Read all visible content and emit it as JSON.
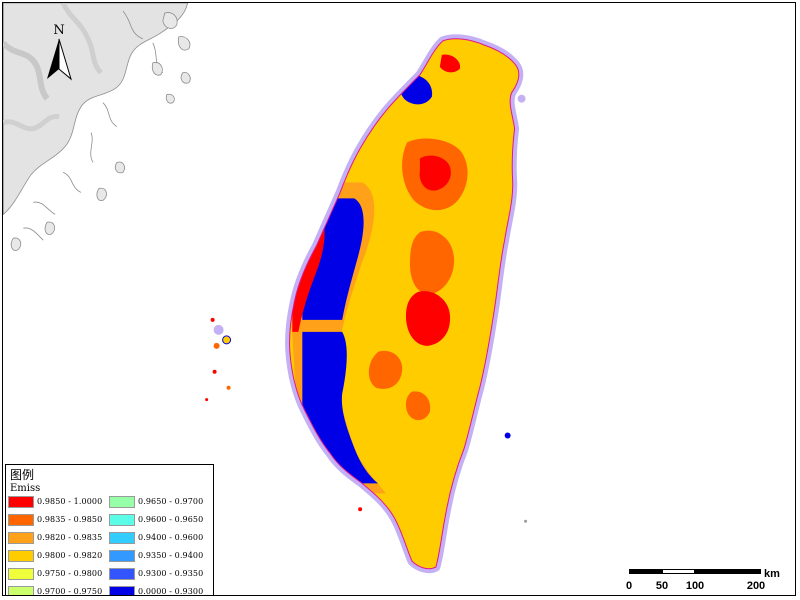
{
  "map": {
    "north_label": "N",
    "colors": {
      "ocean": "#ffffff",
      "mainland_hillshade": "#e2e2e2",
      "coastline": "#b9a3ee",
      "island_border": "#6b6b6b"
    }
  },
  "legend": {
    "title": "图例",
    "field": "Emiss",
    "classes": [
      {
        "label": "0.9850 - 1.0000",
        "color": "#ff0000"
      },
      {
        "label": "0.9835 - 0.9850",
        "color": "#ff6600"
      },
      {
        "label": "0.9820 - 0.9835",
        "color": "#ffa21a"
      },
      {
        "label": "0.9800 - 0.9820",
        "color": "#ffcc00"
      },
      {
        "label": "0.9750 - 0.9800",
        "color": "#f0ff3c"
      },
      {
        "label": "0.9700 - 0.9750",
        "color": "#cbff6c"
      },
      {
        "label": "0.9650 - 0.9700",
        "color": "#96ffa8"
      },
      {
        "label": "0.9600 - 0.9650",
        "color": "#5cfde8"
      },
      {
        "label": "0.9400 - 0.9600",
        "color": "#33ccff"
      },
      {
        "label": "0.9350 - 0.9400",
        "color": "#3399ff"
      },
      {
        "label": "0.9300 - 0.9350",
        "color": "#3355ff"
      },
      {
        "label": "0.0000 - 0.9300",
        "color": "#0000e6"
      }
    ]
  },
  "scale_bar": {
    "ticks": [
      "0",
      "50",
      "100",
      "200"
    ],
    "unit": "km"
  }
}
